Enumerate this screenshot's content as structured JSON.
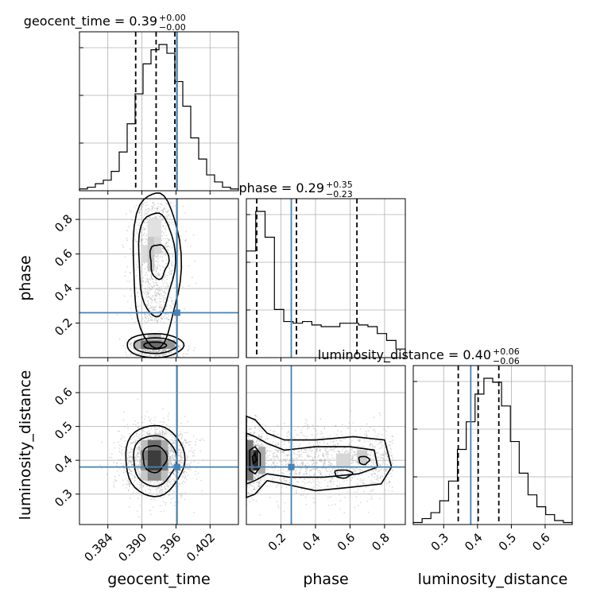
{
  "chart_data": {
    "type": "corner",
    "parameters": [
      {
        "name": "geocent_time",
        "title": "geocent_time = 0.39",
        "title_err_plus": "+0.00",
        "title_err_minus": "−0.00",
        "range": [
          0.379,
          0.407
        ],
        "ticks": [
          0.384,
          0.39,
          0.396,
          0.402
        ],
        "tick_labels": [
          "0.384",
          "0.390",
          "0.396",
          "0.402"
        ],
        "quantiles": [
          0.3889,
          0.3925,
          0.3958
        ],
        "truth": 0.3962,
        "hist_counts": [
          1,
          2,
          4,
          6,
          11,
          22,
          38,
          55,
          72,
          80,
          83,
          78,
          62,
          48,
          30,
          18,
          9,
          5,
          2,
          1
        ]
      },
      {
        "name": "phase",
        "title": "phase = 0.29",
        "title_err_plus": "+0.35",
        "title_err_minus": "−0.23",
        "range": [
          0.0,
          0.92
        ],
        "ticks": [
          0.2,
          0.4,
          0.6,
          0.8
        ],
        "tick_labels": [
          "0.2",
          "0.4",
          "0.6",
          "0.8"
        ],
        "quantiles": [
          0.06,
          0.29,
          0.64
        ],
        "truth": 0.26,
        "hist_counts": [
          62,
          85,
          70,
          28,
          21,
          20,
          21,
          19,
          18,
          18,
          20,
          20,
          19,
          18,
          14,
          10,
          5
        ]
      },
      {
        "name": "luminosity_distance",
        "title": "luminosity_distance = 0.40",
        "title_err_plus": "+0.06",
        "title_err_minus": "−0.06",
        "range": [
          0.21,
          0.68
        ],
        "ticks": [
          0.3,
          0.4,
          0.5,
          0.6
        ],
        "tick_labels": [
          "0.3",
          "0.4",
          "0.5",
          "0.6"
        ],
        "quantiles": [
          0.343,
          0.402,
          0.463
        ],
        "truth": 0.38,
        "hist_counts": [
          1,
          3,
          6,
          12,
          22,
          38,
          52,
          66,
          74,
          72,
          60,
          42,
          26,
          15,
          9,
          5,
          2,
          1
        ]
      }
    ],
    "pair_plots": [
      {
        "x_param": "geocent_time",
        "y_param": "phase",
        "y_ticks": [
          0.2,
          0.4,
          0.6,
          0.8
        ],
        "y_tick_labels": [
          "0.2",
          "0.4",
          "0.6",
          "0.8"
        ],
        "y_label": "phase",
        "truth": [
          0.3962,
          0.26
        ]
      },
      {
        "x_param": "geocent_time",
        "y_param": "luminosity_distance",
        "y_ticks": [
          0.3,
          0.4,
          0.5,
          0.6
        ],
        "y_tick_labels": [
          "0.3",
          "0.4",
          "0.5",
          "0.6"
        ],
        "y_label": "luminosity_distance",
        "truth": [
          0.3962,
          0.38
        ]
      },
      {
        "x_param": "phase",
        "y_param": "luminosity_distance",
        "truth": [
          0.26,
          0.38
        ]
      }
    ],
    "x_labels": [
      "geocent_time",
      "phase",
      "luminosity_distance"
    ],
    "truth_color": "#4682b4",
    "grid": true
  }
}
